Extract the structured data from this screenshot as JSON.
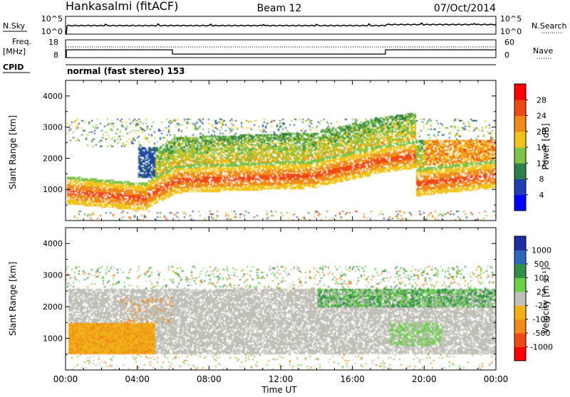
{
  "header": {
    "station": "Hankasalmi (fitACF)",
    "beam": "Beam 12",
    "date": "07/Oct/2014"
  },
  "strip_labels": {
    "nsky": "N.Sky",
    "nsearch": "N.Search",
    "freq_line1": "Freq.",
    "freq_line2": "[MHz]",
    "nave": "Nave",
    "cpid": "CPID",
    "cpid_value": "normal (fast stereo) 153",
    "nsky_ticks": [
      "10^5",
      "10^0"
    ],
    "nsearch_ticks": [
      "10^5",
      "10^0"
    ],
    "freq_ticks": [
      "18",
      "8"
    ],
    "nave_ticks": [
      "60",
      "0"
    ]
  },
  "colors": {
    "power": [
      "#0000ff",
      "#1f3fb0",
      "#2e7e4a",
      "#7ec24a",
      "#f0c31a",
      "#f08a1a",
      "#f04a14",
      "#ff0000"
    ],
    "velocity": [
      "#ff0000",
      "#f04a14",
      "#f08a1a",
      "#f0b018",
      "#c0c0b8",
      "#6cd048",
      "#2e8e4a",
      "#2a6ab4",
      "#1e2ea0"
    ]
  },
  "chart_data": [
    {
      "type": "heatmap",
      "quantity": "Power",
      "ylabel": "Slant Range [km]",
      "xlabel": "",
      "yticks": [
        "1000",
        "2000",
        "3000",
        "4000"
      ],
      "xticks": [
        "00:00",
        "04:00",
        "08:00",
        "12:00",
        "16:00",
        "20:00",
        "00:00"
      ],
      "ylim": [
        0,
        4500
      ],
      "xlim_hours": [
        0,
        24
      ],
      "colorbar_label": "Power [dB]",
      "colorbar_ticks": [
        "4",
        "8",
        "12",
        "16",
        "20",
        "24",
        "28"
      ],
      "colorbar_range": [
        0,
        32
      ]
    },
    {
      "type": "heatmap",
      "quantity": "Velocity",
      "ylabel": "Slant Range [km]",
      "xlabel": "Time UT",
      "yticks": [
        "1000",
        "2000",
        "3000",
        "4000"
      ],
      "xticks": [
        "00:00",
        "04:00",
        "08:00",
        "12:00",
        "16:00",
        "20:00",
        "00:00"
      ],
      "ylim": [
        0,
        4500
      ],
      "xlim_hours": [
        0,
        24
      ],
      "colorbar_label": "Velocity [m s⁻¹]",
      "colorbar_ticks": [
        "1000",
        "500",
        "100",
        "25",
        "-25",
        "-100",
        "-500",
        "-1000"
      ]
    }
  ]
}
